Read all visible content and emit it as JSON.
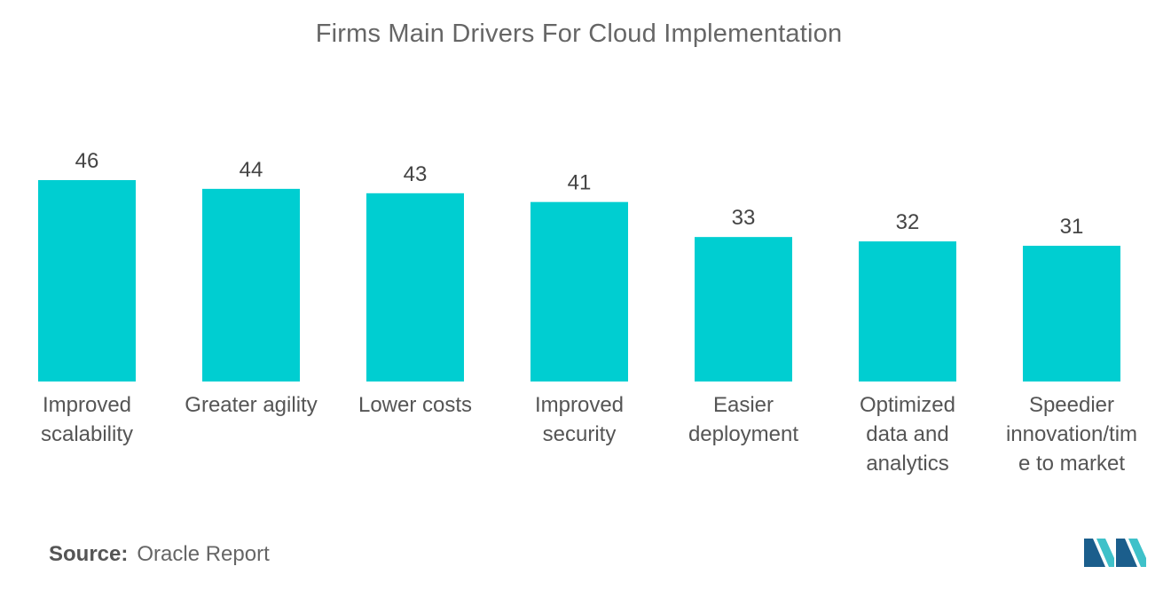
{
  "chart_data": {
    "type": "bar",
    "title": "Firms Main Drivers For Cloud Implementation",
    "categories": [
      [
        "Improved",
        "scalability"
      ],
      [
        "Greater agility"
      ],
      [
        "Lower costs"
      ],
      [
        "Improved",
        "security"
      ],
      [
        "Easier",
        "deployment"
      ],
      [
        "Optimized",
        "data and",
        "analytics"
      ],
      [
        "Speedier",
        "innovation/tim",
        "e to market"
      ]
    ],
    "values": [
      46,
      44,
      43,
      41,
      33,
      32,
      31
    ],
    "bar_color": "#00CED1",
    "xlabel": "",
    "ylabel": "",
    "ylim": [
      0,
      46
    ],
    "grid": false,
    "legend": "none"
  },
  "source": {
    "label": "Source:",
    "text": "Oracle Report"
  },
  "logo": {
    "icon": "mordor-intelligence-logo",
    "color_dark": "#1B5E8C",
    "color_light": "#3FC1C9"
  }
}
